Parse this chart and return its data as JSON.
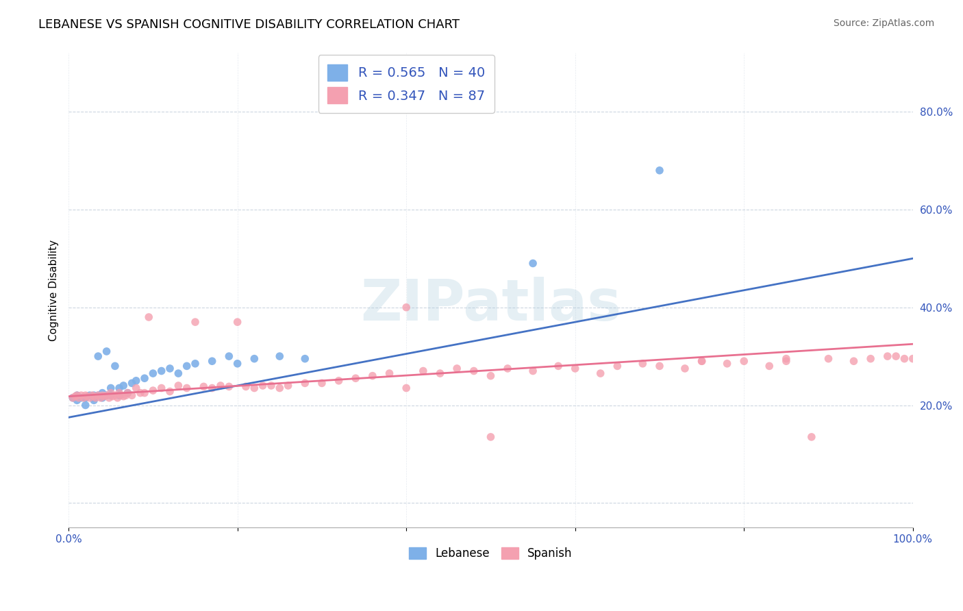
{
  "title": "LEBANESE VS SPANISH COGNITIVE DISABILITY CORRELATION CHART",
  "source": "Source: ZipAtlas.com",
  "ylabel": "Cognitive Disability",
  "xlim": [
    0,
    1.0
  ],
  "ylim": [
    -0.05,
    0.92
  ],
  "yticks": [
    0.0,
    0.2,
    0.4,
    0.6,
    0.8
  ],
  "ytick_labels": [
    "",
    "20.0%",
    "40.0%",
    "60.0%",
    "80.0%"
  ],
  "xticks": [
    0.0,
    0.2,
    0.4,
    0.6,
    0.8,
    1.0
  ],
  "xtick_labels": [
    "0.0%",
    "",
    "",
    "",
    "",
    "100.0%"
  ],
  "legend_R1": "R = 0.565",
  "legend_N1": "N = 40",
  "legend_R2": "R = 0.347",
  "legend_N2": "N = 87",
  "color_blue": "#7EB0E8",
  "color_pink": "#F4A0B0",
  "color_line_blue": "#4472C4",
  "color_line_pink": "#E87090",
  "title_fontsize": 13,
  "label_fontsize": 11,
  "tick_fontsize": 11,
  "lebanese_x": [
    0.005,
    0.01,
    0.01,
    0.015,
    0.02,
    0.02,
    0.025,
    0.03,
    0.03,
    0.03,
    0.035,
    0.035,
    0.04,
    0.04,
    0.045,
    0.045,
    0.05,
    0.05,
    0.055,
    0.06,
    0.06,
    0.065,
    0.07,
    0.075,
    0.08,
    0.09,
    0.1,
    0.11,
    0.12,
    0.13,
    0.14,
    0.15,
    0.17,
    0.19,
    0.2,
    0.22,
    0.25,
    0.28,
    0.55,
    0.7
  ],
  "lebanese_y": [
    0.215,
    0.22,
    0.21,
    0.215,
    0.2,
    0.215,
    0.22,
    0.215,
    0.22,
    0.21,
    0.3,
    0.22,
    0.225,
    0.215,
    0.31,
    0.22,
    0.235,
    0.22,
    0.28,
    0.235,
    0.22,
    0.24,
    0.225,
    0.245,
    0.25,
    0.255,
    0.265,
    0.27,
    0.275,
    0.265,
    0.28,
    0.285,
    0.29,
    0.3,
    0.285,
    0.295,
    0.3,
    0.295,
    0.49,
    0.68
  ],
  "spanish_x": [
    0.005,
    0.008,
    0.01,
    0.012,
    0.015,
    0.018,
    0.02,
    0.022,
    0.025,
    0.028,
    0.03,
    0.032,
    0.035,
    0.038,
    0.04,
    0.042,
    0.045,
    0.048,
    0.05,
    0.052,
    0.055,
    0.058,
    0.06,
    0.062,
    0.065,
    0.068,
    0.07,
    0.075,
    0.08,
    0.085,
    0.09,
    0.095,
    0.1,
    0.11,
    0.12,
    0.13,
    0.14,
    0.15,
    0.16,
    0.17,
    0.18,
    0.19,
    0.2,
    0.21,
    0.22,
    0.23,
    0.24,
    0.25,
    0.26,
    0.28,
    0.3,
    0.32,
    0.34,
    0.36,
    0.38,
    0.4,
    0.42,
    0.44,
    0.46,
    0.48,
    0.5,
    0.52,
    0.55,
    0.58,
    0.6,
    0.63,
    0.65,
    0.68,
    0.7,
    0.73,
    0.75,
    0.78,
    0.8,
    0.83,
    0.85,
    0.88,
    0.9,
    0.93,
    0.95,
    0.97,
    0.98,
    0.99,
    1.0,
    0.5,
    0.75,
    0.85,
    0.4
  ],
  "spanish_y": [
    0.215,
    0.218,
    0.22,
    0.215,
    0.22,
    0.215,
    0.22,
    0.218,
    0.215,
    0.22,
    0.218,
    0.215,
    0.22,
    0.215,
    0.22,
    0.218,
    0.22,
    0.215,
    0.225,
    0.218,
    0.22,
    0.215,
    0.225,
    0.22,
    0.218,
    0.22,
    0.225,
    0.22,
    0.235,
    0.225,
    0.225,
    0.38,
    0.23,
    0.235,
    0.228,
    0.24,
    0.235,
    0.37,
    0.238,
    0.235,
    0.24,
    0.238,
    0.37,
    0.238,
    0.235,
    0.24,
    0.24,
    0.235,
    0.24,
    0.245,
    0.245,
    0.25,
    0.255,
    0.26,
    0.265,
    0.235,
    0.27,
    0.265,
    0.275,
    0.27,
    0.135,
    0.275,
    0.27,
    0.28,
    0.275,
    0.265,
    0.28,
    0.285,
    0.28,
    0.275,
    0.29,
    0.285,
    0.29,
    0.28,
    0.295,
    0.135,
    0.295,
    0.29,
    0.295,
    0.3,
    0.3,
    0.295,
    0.295,
    0.26,
    0.29,
    0.29,
    0.4
  ],
  "line_blue_x0": 0.0,
  "line_blue_y0": 0.175,
  "line_blue_x1": 1.0,
  "line_blue_y1": 0.5,
  "line_pink_x0": 0.0,
  "line_pink_y0": 0.218,
  "line_pink_x1": 1.0,
  "line_pink_y1": 0.325
}
